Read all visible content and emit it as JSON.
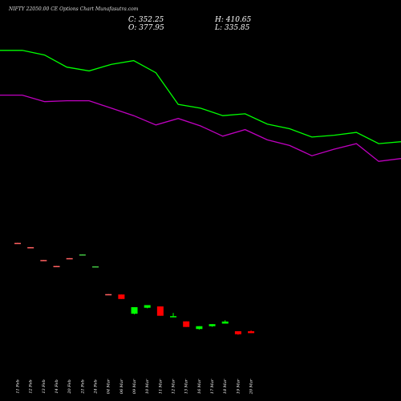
{
  "header": {
    "title": "NIFTY 22050.00  CE Options  Chart Munafasutra.com",
    "close_label": "C: 352.25",
    "open_label": "O: 377.95",
    "high_label": "H: 410.65",
    "low_label": "L: 335.85"
  },
  "chart_data": {
    "type": "candlestick",
    "title": "NIFTY 22050.00  CE Options  Chart Munafasutra.com",
    "categories": [
      "11 Feb",
      "12 Feb",
      "13 Feb",
      "14 Feb",
      "20 Feb",
      "21 Feb",
      "24 Feb",
      "04 Mar",
      "06 Mar",
      "09 Mar",
      "10 Mar",
      "11 Mar",
      "12 Mar",
      "13 Mar",
      "16 Mar",
      "17 Mar",
      "18 Mar",
      "19 Mar",
      "20 Mar"
    ],
    "candles": [
      {
        "open": 948,
        "close": 946,
        "high": 948,
        "low": 946,
        "color": "#ff6060"
      },
      {
        "open": 925,
        "close": 923,
        "high": 925,
        "low": 923,
        "color": "#ff6060"
      },
      {
        "open": 856,
        "close": 854,
        "high": 856,
        "low": 854,
        "color": "#ff6060"
      },
      {
        "open": 824,
        "close": 822,
        "high": 824,
        "low": 822,
        "color": "#ff6060"
      },
      {
        "open": 864,
        "close": 866,
        "high": 866,
        "low": 864,
        "color": "#ff6060"
      },
      {
        "open": 884,
        "close": 886,
        "high": 886,
        "low": 884,
        "color": "#40c040"
      },
      {
        "open": 820,
        "close": 822,
        "high": 822,
        "low": 820,
        "color": "#40c040"
      },
      {
        "open": 673,
        "close": 671,
        "high": 673,
        "low": 671,
        "color": "#ff6060"
      },
      {
        "open": 671,
        "close": 647,
        "high": 671,
        "low": 647,
        "color": "#ff0000"
      },
      {
        "open": 568,
        "close": 603,
        "high": 603,
        "low": 565,
        "color": "#00ff00"
      },
      {
        "open": 600,
        "close": 614,
        "high": 614,
        "low": 597,
        "color": "#00ff00"
      },
      {
        "open": 607,
        "close": 557,
        "high": 607,
        "low": 557,
        "color": "#ff0000"
      },
      {
        "open": 552,
        "close": 555,
        "high": 572,
        "low": 549,
        "color": "#00ff00"
      },
      {
        "open": 527,
        "close": 497,
        "high": 527,
        "low": 497,
        "color": "#ff0000"
      },
      {
        "open": 486,
        "close": 501,
        "high": 501,
        "low": 483,
        "color": "#00ff00"
      },
      {
        "open": 501,
        "close": 512,
        "high": 512,
        "low": 498,
        "color": "#00ff00"
      },
      {
        "open": 515,
        "close": 526,
        "high": 533,
        "low": 515,
        "color": "#00ff00"
      },
      {
        "open": 474,
        "close": 458,
        "high": 474,
        "low": 455,
        "color": "#ff0000"
      },
      {
        "open": 474,
        "close": 464,
        "high": 479,
        "low": 464,
        "color": "#ff0000"
      }
    ],
    "series": [
      {
        "color": "#00ff00",
        "x": [
          0,
          2,
          4,
          6,
          8,
          10,
          12,
          14,
          16,
          18,
          20,
          22,
          24,
          26,
          28,
          30,
          32,
          34,
          36
        ],
        "values": [
          1980,
          1980,
          1955,
          1890,
          1870,
          1905,
          1925,
          1860,
          1690,
          1670,
          1630,
          1640,
          1585,
          1560,
          1515,
          1525,
          1540,
          1480,
          1490
        ]
      },
      {
        "color": "#c000c0",
        "x": [
          0,
          2,
          4,
          6,
          8,
          10,
          12,
          14,
          16,
          18,
          20,
          22,
          24,
          26,
          28,
          30,
          32,
          34,
          36
        ],
        "values": [
          1740,
          1740,
          1705,
          1710,
          1710,
          1670,
          1630,
          1580,
          1615,
          1575,
          1520,
          1555,
          1500,
          1470,
          1415,
          1450,
          1480,
          1385,
          1400
        ]
      }
    ],
    "ylim": [
      100,
      2250
    ],
    "grid": false,
    "legend": "none"
  }
}
